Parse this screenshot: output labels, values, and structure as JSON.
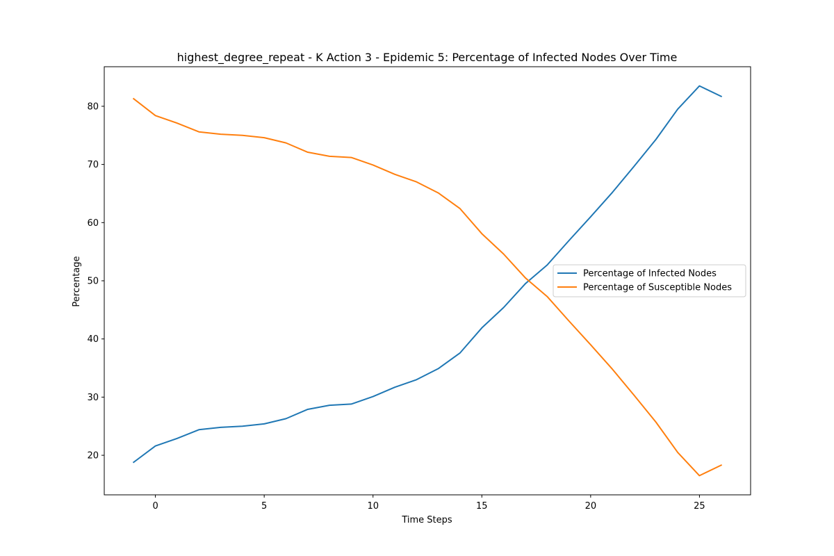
{
  "chart_data": {
    "type": "line",
    "title": "highest_degree_repeat - K Action 3 - Epidemic 5: Percentage of Infected Nodes Over Time",
    "xlabel": "Time Steps",
    "ylabel": "Percentage",
    "xlim": [
      -2.35,
      27.35
    ],
    "ylim": [
      13.2,
      86.8
    ],
    "xticks": [
      0,
      5,
      10,
      15,
      20,
      25
    ],
    "yticks": [
      20,
      30,
      40,
      50,
      60,
      70,
      80
    ],
    "grid": false,
    "legend_position": "center-right",
    "x": [
      -1,
      0,
      1,
      2,
      3,
      4,
      5,
      6,
      7,
      8,
      9,
      10,
      11,
      12,
      13,
      14,
      15,
      16,
      17,
      18,
      19,
      20,
      21,
      22,
      23,
      24,
      25,
      26
    ],
    "series": [
      {
        "name": "Percentage of Infected Nodes",
        "color": "#1f77b4",
        "values": [
          18.8,
          21.6,
          22.9,
          24.4,
          24.8,
          25.0,
          25.4,
          26.3,
          27.9,
          28.6,
          28.8,
          30.1,
          31.7,
          33.0,
          34.9,
          37.6,
          41.9,
          45.4,
          49.5,
          52.7,
          56.9,
          61.0,
          65.2,
          69.7,
          74.3,
          79.5,
          83.5,
          81.7
        ],
        "legend_label": "Percentage of Infected Nodes"
      },
      {
        "name": "Percentage of Susceptible Nodes",
        "color": "#ff7f0e",
        "values": [
          81.3,
          78.4,
          77.1,
          75.6,
          75.2,
          75.0,
          74.6,
          73.7,
          72.1,
          71.4,
          71.2,
          69.9,
          68.3,
          67.0,
          65.1,
          62.4,
          58.1,
          54.6,
          50.5,
          47.3,
          43.1,
          39.0,
          34.8,
          30.3,
          25.7,
          20.5,
          16.5,
          18.3
        ],
        "legend_label": "Percentage of Susceptible Nodes"
      }
    ]
  }
}
